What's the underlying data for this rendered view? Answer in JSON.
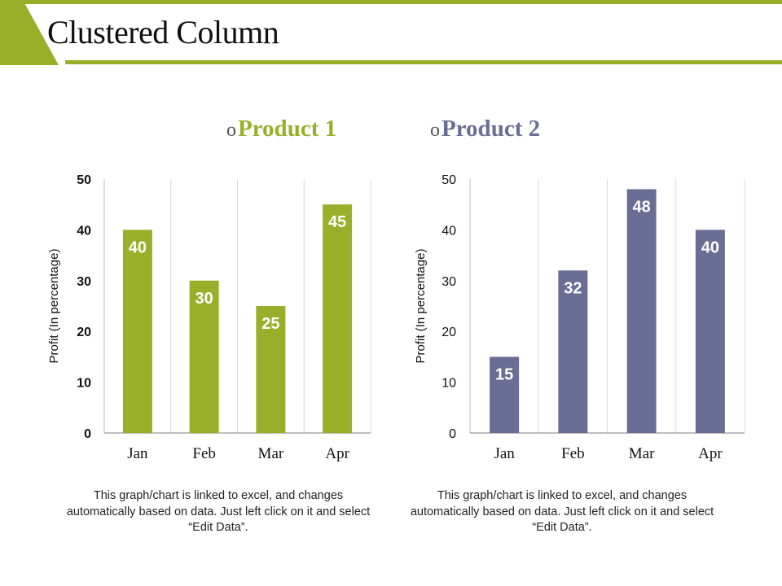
{
  "slide": {
    "title": "Clustered Column",
    "accent_color": "#9aaf29"
  },
  "legend": [
    {
      "marker": "o",
      "label": "Product 1",
      "color": "#9aaf29"
    },
    {
      "marker": "o",
      "label": "Product 2",
      "color": "#6a6d94"
    }
  ],
  "captions": [
    "This graph/chart is linked to excel, and changes automatically based on data. Just left click on it and select “Edit Data”.",
    "This graph/chart is linked to excel, and changes automatically based on data. Just left click on it and select “Edit Data”."
  ],
  "chart_data": [
    {
      "type": "bar",
      "series_name": "Product 1",
      "categories": [
        "Jan",
        "Feb",
        "Mar",
        "Apr"
      ],
      "values": [
        40,
        30,
        25,
        45
      ],
      "ylabel": "Profit  (In percentage)",
      "ylim": [
        0,
        50
      ],
      "yticks": [
        0,
        10,
        20,
        30,
        40,
        50
      ],
      "color": "#9aaf29",
      "grid": "vertical"
    },
    {
      "type": "bar",
      "series_name": "Product 2",
      "categories": [
        "Jan",
        "Feb",
        "Mar",
        "Apr"
      ],
      "values": [
        15,
        32,
        48,
        40
      ],
      "ylabel": "Profit  (In percentage)",
      "ylim": [
        0,
        50
      ],
      "yticks": [
        0,
        10,
        20,
        30,
        40,
        50
      ],
      "color": "#6a6d94",
      "grid": "vertical"
    }
  ]
}
